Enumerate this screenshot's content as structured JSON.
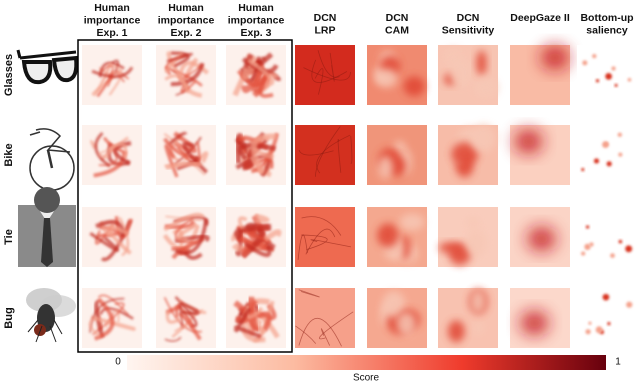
{
  "columns": [
    [
      "Human",
      "importance",
      "Exp. 1"
    ],
    [
      "Human",
      "importance",
      "Exp. 2"
    ],
    [
      "Human",
      "importance",
      "Exp. 3"
    ],
    [
      "DCN",
      "LRP"
    ],
    [
      "DCN",
      "CAM"
    ],
    [
      "DCN",
      "Sensitivity"
    ],
    [
      "DeepGaze II"
    ],
    [
      "Bottom-up",
      "saliency"
    ]
  ],
  "rows": [
    "Glasses",
    "Bike",
    "Tie",
    "Bug"
  ],
  "colorbar": {
    "min": "0",
    "max": "1",
    "label": "Score"
  }
}
